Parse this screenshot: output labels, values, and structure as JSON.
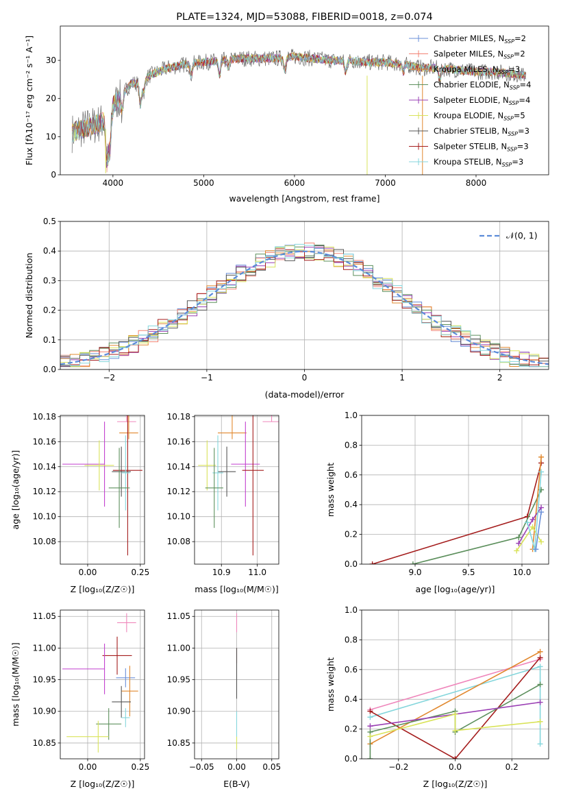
{
  "colors": {
    "c1": "#6a8fd8",
    "c2": "#f28272",
    "c3": "#e1882e",
    "c4": "#5c8f5c",
    "c5": "#9a3fb4",
    "c6": "#d9e35a",
    "c7": "#555555",
    "c8": "#a41c1c",
    "c9": "#84d6dc",
    "mag": "#c23fcf",
    "pink": "#ef86bb",
    "gauss": "#5b8bd9"
  },
  "chart_data": [
    {
      "id": "spectrum",
      "type": "line",
      "title": "PLATE=1324, MJD=53088, FIBERID=0018, z=0.074",
      "xlabel": "wavelength [Angstrom, rest frame]",
      "ylabel": "Flux [fλ10⁻¹⁷ erg cm⁻² s⁻¹ A⁻¹]",
      "xlim": [
        3420,
        8800
      ],
      "ylim": [
        0,
        39
      ],
      "xticks": [
        4000,
        5000,
        6000,
        7000,
        8000
      ],
      "yticks": [
        0,
        10,
        20,
        30
      ],
      "legend_position": "upper right",
      "legend": [
        {
          "main": "Chabrier MILES, N",
          "sub": "SSP",
          "tail": "=2",
          "color": "#6a8fd8"
        },
        {
          "main": "Salpeter MILES, N",
          "sub": "SSP",
          "tail": "=2",
          "color": "#f28272"
        },
        {
          "main": "Kroupa MILES, N",
          "sub": "SSP",
          "tail": "=3",
          "color": "#e1882e"
        },
        {
          "main": "Chabrier ELODIE, N",
          "sub": "SSP",
          "tail": "=4",
          "color": "#5c8f5c"
        },
        {
          "main": "Salpeter ELODIE, N",
          "sub": "SSP",
          "tail": "=4",
          "color": "#9a3fb4"
        },
        {
          "main": "Kroupa ELODIE, N",
          "sub": "SSP",
          "tail": "=5",
          "color": "#d9e35a"
        },
        {
          "main": "Chabrier STELIB, N",
          "sub": "SSP",
          "tail": "=3",
          "color": "#555555"
        },
        {
          "main": "Salpeter STELIB, N",
          "sub": "SSP",
          "tail": "=3",
          "color": "#a41c1c"
        },
        {
          "main": "Kroupa STELIB, N",
          "sub": "SSP",
          "tail": "=3",
          "color": "#84d6dc"
        }
      ],
      "continuum": [
        [
          3550,
          11
        ],
        [
          3650,
          12
        ],
        [
          3800,
          13
        ],
        [
          3900,
          14
        ],
        [
          3950,
          10
        ],
        [
          4000,
          18
        ],
        [
          4100,
          21
        ],
        [
          4200,
          24
        ],
        [
          4300,
          24
        ],
        [
          4400,
          26
        ],
        [
          4600,
          28
        ],
        [
          4800,
          29
        ],
        [
          5000,
          29.5
        ],
        [
          5200,
          30
        ],
        [
          5400,
          30.5
        ],
        [
          5600,
          30.5
        ],
        [
          5800,
          30.5
        ],
        [
          6000,
          31
        ],
        [
          6200,
          30.5
        ],
        [
          6400,
          30
        ],
        [
          6600,
          30
        ],
        [
          6800,
          29.5
        ],
        [
          7000,
          29.5
        ],
        [
          7200,
          29
        ],
        [
          7400,
          28
        ],
        [
          7600,
          28
        ],
        [
          7800,
          27.5
        ],
        [
          8000,
          27
        ],
        [
          8200,
          27
        ],
        [
          8400,
          26.5
        ],
        [
          8550,
          26
        ]
      ],
      "absorption_lines": [
        [
          3934,
          8
        ],
        [
          3969,
          6
        ],
        [
          4102,
          4
        ],
        [
          4304,
          6
        ],
        [
          4340,
          3
        ],
        [
          4861,
          3
        ],
        [
          5175,
          4
        ],
        [
          5270,
          2
        ],
        [
          5893,
          3
        ],
        [
          6563,
          3
        ],
        [
          7200,
          2
        ],
        [
          7600,
          3
        ]
      ],
      "artifacts": [
        [
          6800,
          0
        ],
        [
          7410,
          0
        ]
      ]
    },
    {
      "id": "residuals",
      "type": "histogram",
      "xlabel": "(data-model)/error",
      "ylabel": "Normed distribution",
      "xlim": [
        -2.5,
        2.5
      ],
      "ylim": [
        0,
        0.5
      ],
      "xticks": [
        -2,
        -1,
        0,
        1,
        2
      ],
      "yticks": [
        0.0,
        0.1,
        0.2,
        0.3,
        0.4,
        0.5
      ],
      "legend": "𝒩(0, 1)",
      "legend_position": "upper right",
      "bin_width": 0.1
    },
    {
      "id": "age-vs-z",
      "type": "errorbar",
      "xlabel": "Z [log₁₀(Z/Z☉)]",
      "ylabel": "age  [log₁₀(age/yr)]",
      "xlim": [
        -0.13,
        0.27
      ],
      "ylim": [
        10.062,
        10.181
      ],
      "xticks": [
        0.0,
        0.25
      ],
      "yticks": [
        10.08,
        10.1,
        10.12,
        10.14,
        10.16,
        10.18
      ],
      "points": [
        {
          "x": 0.185,
          "y": 10.176,
          "xerr": 0.045,
          "yerr": [
            0.0,
            0.065
          ],
          "color": "#ef86bb"
        },
        {
          "x": 0.195,
          "y": 10.167,
          "xerr": 0.045,
          "yerr": [
            0.005,
            0.025
          ],
          "color": "#e1882e"
        },
        {
          "x": 0.08,
          "y": 10.142,
          "xerr": [
            0.2,
            0.0
          ],
          "yerr": 0.034,
          "color": "#c23fcf"
        },
        {
          "x": 0.055,
          "y": 10.141,
          "xerr": 0.07,
          "yerr": 0.02,
          "color": "#d9e35a"
        },
        {
          "x": 0.16,
          "y": 10.136,
          "xerr": 0.045,
          "yerr": 0.02,
          "color": "#555555"
        },
        {
          "x": 0.19,
          "y": 10.137,
          "xerr": 0.07,
          "yerr": 0.068,
          "color": "#a41c1c"
        },
        {
          "x": 0.18,
          "y": 10.135,
          "xerr": 0.02,
          "yerr": 0.03,
          "color": "#84d6dc"
        },
        {
          "x": 0.15,
          "y": 10.123,
          "xerr": 0.05,
          "yerr": 0.032,
          "color": "#5c8f5c"
        }
      ]
    },
    {
      "id": "age-vs-mass",
      "type": "errorbar",
      "xlabel": "mass [log₁₀(M/M☉)]",
      "xlim": [
        10.825,
        11.06
      ],
      "ylim": [
        10.062,
        10.181
      ],
      "xticks": [
        10.9,
        11.0
      ],
      "yticks": [
        10.08,
        10.1,
        10.12,
        10.14,
        10.16,
        10.18
      ],
      "points": [
        {
          "x": 11.04,
          "y": 10.176,
          "xerr": 0.025,
          "yerr": [
            0.0,
            0.065
          ],
          "color": "#ef86bb"
        },
        {
          "x": 10.93,
          "y": 10.167,
          "xerr": 0.04,
          "yerr": [
            0.005,
            0.025
          ],
          "color": "#e1882e"
        },
        {
          "x": 10.967,
          "y": 10.142,
          "xerr": 0.04,
          "yerr": 0.034,
          "color": "#c23fcf"
        },
        {
          "x": 10.86,
          "y": 10.141,
          "xerr": 0.025,
          "yerr": 0.02,
          "color": "#d9e35a"
        },
        {
          "x": 10.915,
          "y": 10.136,
          "xerr": 0.025,
          "yerr": 0.02,
          "color": "#555555"
        },
        {
          "x": 10.988,
          "y": 10.137,
          "xerr": 0.03,
          "yerr": 0.068,
          "color": "#a41c1c"
        },
        {
          "x": 10.89,
          "y": 10.135,
          "xerr": 0.015,
          "yerr": 0.03,
          "color": "#84d6dc"
        },
        {
          "x": 10.88,
          "y": 10.123,
          "xerr": 0.025,
          "yerr": 0.032,
          "color": "#5c8f5c"
        }
      ]
    },
    {
      "id": "weight-vs-age",
      "type": "line",
      "xlabel": "age  [log₁₀(age/yr)]",
      "ylabel": "mass weight",
      "xlim": [
        8.5,
        10.25
      ],
      "ylim": [
        0,
        1
      ],
      "xticks": [
        9.0,
        9.5,
        10.0
      ],
      "yticks": [
        0.0,
        0.2,
        0.4,
        0.6,
        0.8,
        1.0
      ],
      "series": [
        {
          "color": "#a41c1c",
          "points": [
            [
              8.6,
              0.0
            ],
            [
              10.05,
              0.32
            ],
            [
              10.18,
              0.68
            ]
          ]
        },
        {
          "color": "#5c8f5c",
          "points": [
            [
              8.98,
              0.0
            ],
            [
              9.97,
              0.18
            ],
            [
              10.18,
              0.5
            ]
          ]
        },
        {
          "color": "#e1882e",
          "points": [
            [
              10.1,
              0.1
            ],
            [
              10.18,
              0.72
            ]
          ]
        },
        {
          "color": "#9a3fb4",
          "points": [
            [
              9.97,
              0.14
            ],
            [
              10.1,
              0.3
            ],
            [
              10.18,
              0.38
            ]
          ]
        },
        {
          "color": "#d9e35a",
          "points": [
            [
              9.95,
              0.09
            ],
            [
              10.1,
              0.25
            ],
            [
              10.18,
              0.15
            ]
          ]
        },
        {
          "color": "#84d6dc",
          "points": [
            [
              10.05,
              0.28
            ],
            [
              10.12,
              0.1
            ],
            [
              10.18,
              0.62
            ]
          ]
        },
        {
          "color": "#6a8fd8",
          "points": [
            [
              10.13,
              0.1
            ],
            [
              10.18,
              0.35
            ]
          ]
        }
      ]
    },
    {
      "id": "mass-vs-z",
      "type": "errorbar",
      "xlabel": "Z [log₁₀(Z/Z☉)]",
      "ylabel": "mass [log₁₀(M/M☉)]",
      "xlim": [
        -0.13,
        0.27
      ],
      "ylim": [
        10.825,
        11.06
      ],
      "xticks": [
        0.0,
        0.25
      ],
      "yticks": [
        10.85,
        10.9,
        10.95,
        11.0,
        11.05
      ],
      "points": [
        {
          "x": 0.185,
          "y": 11.04,
          "xerr": 0.045,
          "yerr": 0.015,
          "color": "#ef86bb"
        },
        {
          "x": 0.14,
          "y": 10.988,
          "xerr": 0.07,
          "yerr": 0.03,
          "color": "#a41c1c"
        },
        {
          "x": 0.08,
          "y": 10.967,
          "xerr": [
            0.2,
            0.0
          ],
          "yerr": 0.04,
          "color": "#c23fcf"
        },
        {
          "x": 0.18,
          "y": 10.953,
          "xerr": 0.045,
          "yerr": 0.015,
          "color": "#6a8fd8"
        },
        {
          "x": 0.2,
          "y": 10.932,
          "xerr": 0.04,
          "yerr": 0.04,
          "color": "#e1882e"
        },
        {
          "x": 0.16,
          "y": 10.915,
          "xerr": 0.045,
          "yerr": 0.025,
          "color": "#555555"
        },
        {
          "x": 0.18,
          "y": 10.89,
          "xerr": 0.02,
          "yerr": 0.015,
          "color": "#84d6dc"
        },
        {
          "x": 0.1,
          "y": 10.88,
          "xerr": 0.06,
          "yerr": 0.025,
          "color": "#5c8f5c"
        },
        {
          "x": 0.05,
          "y": 10.86,
          "xerr": [
            0.15,
            0.05
          ],
          "yerr": 0.025,
          "color": "#d9e35a"
        }
      ]
    },
    {
      "id": "mass-vs-ebv",
      "type": "errorbar",
      "xlabel": "E(B-V)",
      "xlim": [
        -0.06,
        0.06
      ],
      "ylim": [
        10.825,
        11.06
      ],
      "xticks": [
        -0.05,
        0.0,
        0.05
      ],
      "yticks": [
        10.85,
        10.9,
        10.95,
        11.0,
        11.05
      ],
      "points": [
        {
          "x": 0.0,
          "y": 11.04,
          "xerr": 0.0,
          "yerr": 0.015,
          "color": "#ef86bb"
        },
        {
          "x": 0.0,
          "y": 10.988,
          "xerr": 0.0,
          "yerr": 0.012,
          "color": "#a41c1c"
        },
        {
          "x": 0.0,
          "y": 10.96,
          "xerr": 0.0,
          "yerr": 0.04,
          "color": "#555555"
        },
        {
          "x": 0.0,
          "y": 10.87,
          "xerr": 0.0,
          "yerr": 0.03,
          "color": "#84d6dc"
        },
        {
          "x": 0.0,
          "y": 10.85,
          "xerr": 0.0,
          "yerr": 0.01,
          "color": "#d9e35a"
        }
      ]
    },
    {
      "id": "weight-vs-z",
      "type": "line",
      "xlabel": "Z [log₁₀(Z/Z☉)]",
      "ylabel": "mass weight",
      "xlim": [
        -0.33,
        0.33
      ],
      "ylim": [
        0,
        1
      ],
      "xticks": [
        -0.2,
        0.0,
        0.2
      ],
      "yticks": [
        0.0,
        0.2,
        0.4,
        0.6,
        0.8,
        1.0
      ],
      "series": [
        {
          "color": "#ef86bb",
          "points": [
            [
              -0.3,
              0.33
            ],
            [
              0.3,
              0.67
            ]
          ]
        },
        {
          "color": "#84d6dc",
          "points": [
            [
              -0.3,
              0.28
            ],
            [
              0.3,
              0.62
            ],
            [
              0.3,
              0.1
            ]
          ]
        },
        {
          "color": "#a41c1c",
          "points": [
            [
              -0.3,
              0.32
            ],
            [
              0.0,
              0.0
            ],
            [
              0.3,
              0.68
            ]
          ]
        },
        {
          "color": "#e1882e",
          "points": [
            [
              -0.3,
              0.1
            ],
            [
              0.3,
              0.72
            ]
          ]
        },
        {
          "color": "#5c8f5c",
          "points": [
            [
              -0.3,
              0.0
            ],
            [
              -0.3,
              0.18
            ],
            [
              0.0,
              0.32
            ],
            [
              0.0,
              0.18
            ],
            [
              0.3,
              0.5
            ]
          ]
        },
        {
          "color": "#9a3fb4",
          "points": [
            [
              -0.3,
              0.22
            ],
            [
              0.3,
              0.38
            ]
          ]
        },
        {
          "color": "#d9e35a",
          "points": [
            [
              -0.3,
              0.15
            ],
            [
              0.0,
              0.3
            ],
            [
              0.0,
              0.19
            ],
            [
              0.3,
              0.25
            ]
          ]
        }
      ]
    }
  ]
}
